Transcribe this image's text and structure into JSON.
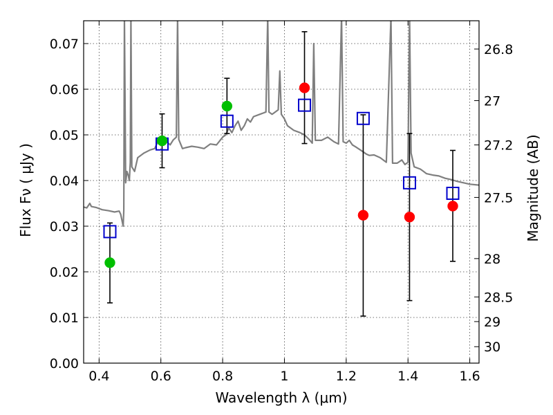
{
  "chart_data": {
    "type": "scatter",
    "xlabel": "Wavelength  λ (μm)",
    "ylabel": "Flux  Fν  ( μJy )",
    "ylabel_right": "Magnitude (AB)",
    "xlim": [
      0.35,
      1.63
    ],
    "ylim": [
      0.0,
      0.075
    ],
    "grid": true,
    "x_ticks": [
      0.4,
      0.6,
      0.8,
      1.0,
      1.2,
      1.4,
      1.6
    ],
    "x_tick_labels": [
      "0.4",
      "0.6",
      "0.8",
      "1",
      "1.2",
      "1.4",
      "1.6"
    ],
    "y_ticks": [
      0.0,
      0.01,
      0.02,
      0.03,
      0.04,
      0.05,
      0.06,
      0.07
    ],
    "y_tick_labels": [
      "0.00",
      "0.01",
      "0.02",
      "0.03",
      "0.04",
      "0.05",
      "0.06",
      "0.07"
    ],
    "right_ticks": [
      {
        "label": "26.8",
        "flux": 0.0688
      },
      {
        "label": "27",
        "flux": 0.0575
      },
      {
        "label": "27.2",
        "flux": 0.0478
      },
      {
        "label": "27.5",
        "flux": 0.0363
      },
      {
        "label": "28",
        "flux": 0.0229
      },
      {
        "label": "28.5",
        "flux": 0.0145
      },
      {
        "label": "29",
        "flux": 0.0091
      },
      {
        "label": "30",
        "flux": 0.0036
      }
    ],
    "colors": {
      "model_sed": "#7f7f7f",
      "observed_green": "#00bf00",
      "observed_red": "#ff0000",
      "model_box": "#0000cc",
      "errorbar": "#000000"
    },
    "series": [
      {
        "marker": "circle",
        "color": "#00bf00",
        "points": [
          {
            "x": 0.435,
            "y": 0.022
          },
          {
            "x": 0.604,
            "y": 0.0487
          },
          {
            "x": 0.814,
            "y": 0.0563
          }
        ]
      },
      {
        "marker": "circle",
        "color": "#ff0000",
        "points": [
          {
            "x": 1.065,
            "y": 0.0603
          },
          {
            "x": 1.255,
            "y": 0.0324
          },
          {
            "x": 1.405,
            "y": 0.032
          },
          {
            "x": 1.545,
            "y": 0.0344
          }
        ]
      },
      {
        "marker": "square-open",
        "color": "#0000cc",
        "points": [
          {
            "x": 0.435,
            "y": 0.0288
          },
          {
            "x": 0.604,
            "y": 0.048
          },
          {
            "x": 0.814,
            "y": 0.053
          },
          {
            "x": 1.065,
            "y": 0.0565
          },
          {
            "x": 1.255,
            "y": 0.0536
          },
          {
            "x": 1.405,
            "y": 0.0395
          },
          {
            "x": 1.545,
            "y": 0.0372
          }
        ]
      }
    ],
    "errorbars": [
      {
        "x": 0.435,
        "low": 0.0132,
        "high": 0.0307
      },
      {
        "x": 0.604,
        "low": 0.0428,
        "high": 0.0546
      },
      {
        "x": 0.814,
        "low": 0.0503,
        "high": 0.0624
      },
      {
        "x": 1.065,
        "low": 0.0481,
        "high": 0.0726
      },
      {
        "x": 1.255,
        "low": 0.0103,
        "high": 0.0544
      },
      {
        "x": 1.405,
        "low": 0.0137,
        "high": 0.0503
      },
      {
        "x": 1.545,
        "low": 0.0223,
        "high": 0.0466
      }
    ],
    "model_sed": [
      [
        0.35,
        0.0342
      ],
      [
        0.36,
        0.034
      ],
      [
        0.37,
        0.035
      ],
      [
        0.375,
        0.0343
      ],
      [
        0.39,
        0.0341
      ],
      [
        0.41,
        0.0336
      ],
      [
        0.43,
        0.0334
      ],
      [
        0.45,
        0.0331
      ],
      [
        0.465,
        0.0333
      ],
      [
        0.47,
        0.0326
      ],
      [
        0.478,
        0.03
      ],
      [
        0.48,
        0.0335
      ],
      [
        0.482,
        0.076
      ],
      [
        0.486,
        0.0395
      ],
      [
        0.49,
        0.042
      ],
      [
        0.495,
        0.041
      ],
      [
        0.498,
        0.04
      ],
      [
        0.501,
        0.044
      ],
      [
        0.503,
        0.076
      ],
      [
        0.506,
        0.043
      ],
      [
        0.515,
        0.042
      ],
      [
        0.525,
        0.045
      ],
      [
        0.545,
        0.046
      ],
      [
        0.565,
        0.0467
      ],
      [
        0.58,
        0.047
      ],
      [
        0.59,
        0.0485
      ],
      [
        0.605,
        0.0482
      ],
      [
        0.615,
        0.0488
      ],
      [
        0.63,
        0.0478
      ],
      [
        0.64,
        0.0489
      ],
      [
        0.65,
        0.0495
      ],
      [
        0.654,
        0.076
      ],
      [
        0.658,
        0.049
      ],
      [
        0.67,
        0.047
      ],
      [
        0.68,
        0.0472
      ],
      [
        0.7,
        0.0475
      ],
      [
        0.72,
        0.0473
      ],
      [
        0.74,
        0.047
      ],
      [
        0.76,
        0.048
      ],
      [
        0.78,
        0.0478
      ],
      [
        0.8,
        0.0495
      ],
      [
        0.81,
        0.05
      ],
      [
        0.82,
        0.0515
      ],
      [
        0.83,
        0.0505
      ],
      [
        0.84,
        0.052
      ],
      [
        0.85,
        0.053
      ],
      [
        0.86,
        0.051
      ],
      [
        0.87,
        0.052
      ],
      [
        0.88,
        0.0535
      ],
      [
        0.89,
        0.0528
      ],
      [
        0.9,
        0.054
      ],
      [
        0.92,
        0.0545
      ],
      [
        0.94,
        0.055
      ],
      [
        0.946,
        0.076
      ],
      [
        0.95,
        0.055
      ],
      [
        0.96,
        0.0545
      ],
      [
        0.97,
        0.055
      ],
      [
        0.98,
        0.0555
      ],
      [
        0.985,
        0.064
      ],
      [
        0.99,
        0.0545
      ],
      [
        1.0,
        0.0535
      ],
      [
        1.01,
        0.052
      ],
      [
        1.03,
        0.051
      ],
      [
        1.05,
        0.0505
      ],
      [
        1.065,
        0.05
      ],
      [
        1.08,
        0.049
      ],
      [
        1.09,
        0.0482
      ],
      [
        1.095,
        0.07
      ],
      [
        1.1,
        0.0488
      ],
      [
        1.12,
        0.0488
      ],
      [
        1.14,
        0.0495
      ],
      [
        1.16,
        0.0485
      ],
      [
        1.175,
        0.048
      ],
      [
        1.185,
        0.076
      ],
      [
        1.19,
        0.0485
      ],
      [
        1.2,
        0.0482
      ],
      [
        1.21,
        0.0488
      ],
      [
        1.22,
        0.0478
      ],
      [
        1.23,
        0.0474
      ],
      [
        1.25,
        0.0465
      ],
      [
        1.265,
        0.0458
      ],
      [
        1.275,
        0.0455
      ],
      [
        1.29,
        0.0456
      ],
      [
        1.31,
        0.045
      ],
      [
        1.33,
        0.044
      ],
      [
        1.345,
        0.076
      ],
      [
        1.35,
        0.0438
      ],
      [
        1.365,
        0.0438
      ],
      [
        1.38,
        0.0445
      ],
      [
        1.39,
        0.0435
      ],
      [
        1.4,
        0.044
      ],
      [
        1.405,
        0.076
      ],
      [
        1.41,
        0.046
      ],
      [
        1.42,
        0.043
      ],
      [
        1.44,
        0.0425
      ],
      [
        1.45,
        0.042
      ],
      [
        1.46,
        0.0415
      ],
      [
        1.48,
        0.0412
      ],
      [
        1.5,
        0.041
      ],
      [
        1.52,
        0.0405
      ],
      [
        1.54,
        0.0402
      ],
      [
        1.56,
        0.0398
      ],
      [
        1.58,
        0.0395
      ],
      [
        1.6,
        0.0392
      ],
      [
        1.63,
        0.039
      ]
    ]
  }
}
